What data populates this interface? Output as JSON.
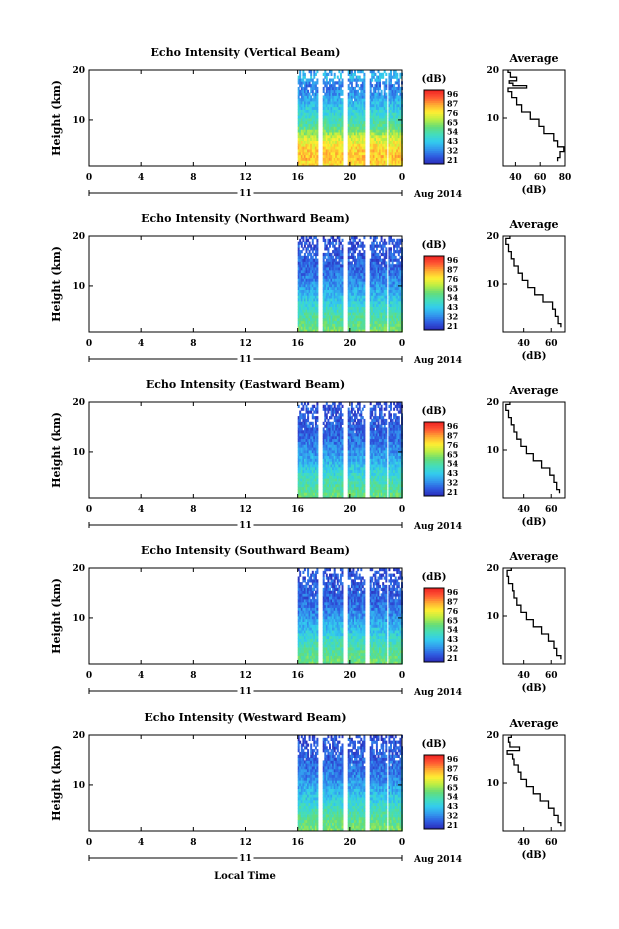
{
  "figure": {
    "xaxis_label": "Local Time",
    "date_label": "Aug 2014",
    "day_label": "11",
    "time_ticks": [
      "0",
      "4",
      "8",
      "12",
      "16",
      "20",
      "0"
    ],
    "height_ticks": [
      "20",
      "10"
    ],
    "ylabel": "Height (km)",
    "colorbar_unit": "(dB)",
    "colorbar_ticks": [
      "96",
      "87",
      "76",
      "65",
      "54",
      "43",
      "32",
      "21"
    ],
    "avg_title": "Average",
    "avg_xlabel": "(dB)",
    "colors": {
      "colorbar": [
        "#2b2bb8",
        "#2e5be0",
        "#3399ee",
        "#33ccee",
        "#44ddbb",
        "#66dd77",
        "#bbee44",
        "#ffee33",
        "#ffaa33",
        "#ff5533",
        "#ee2222"
      ]
    }
  },
  "chart_data": [
    {
      "type": "heatmap",
      "title": "Echo Intensity (Vertical Beam)",
      "x_range_local_time_hours": [
        0,
        24
      ],
      "y_range_km": [
        1.5,
        20
      ],
      "color_range_db": [
        21,
        96
      ],
      "data_time_range_hours": [
        16,
        24
      ],
      "data_gaps_hours": [
        [
          17.6,
          17.9
        ],
        [
          19.5,
          19.8
        ],
        [
          21.2,
          21.5
        ],
        [
          22.8,
          23.0
        ]
      ],
      "intensity_profile": {
        "height_km": [
          1.5,
          3,
          5,
          7,
          9,
          11,
          13,
          15,
          17,
          19,
          20
        ],
        "db": [
          74,
          78,
          76,
          68,
          56,
          49,
          43,
          37,
          32,
          42,
          35
        ]
      },
      "average_profile": {
        "xticks": [
          "40",
          "60",
          "80"
        ],
        "xlim": [
          30,
          80
        ],
        "ylim": [
          0,
          20
        ],
        "height_km": [
          1.0,
          2.5,
          3.5,
          4.5,
          6.0,
          7.5,
          9.0,
          10.5,
          12.0,
          13.5,
          15.0,
          16.0,
          16.5,
          17.0,
          17.5,
          18.0,
          19.0,
          20.0
        ],
        "db": [
          74,
          76,
          79,
          74,
          71,
          63,
          59,
          52,
          45,
          41,
          37,
          34,
          49,
          38,
          35,
          41,
          36,
          34
        ]
      }
    },
    {
      "type": "heatmap",
      "title": "Echo Intensity (Northward Beam)",
      "x_range_local_time_hours": [
        0,
        24
      ],
      "y_range_km": [
        1.5,
        20
      ],
      "color_range_db": [
        21,
        96
      ],
      "data_time_range_hours": [
        16,
        24
      ],
      "data_gaps_hours": [
        [
          17.6,
          17.9
        ],
        [
          19.5,
          19.8
        ],
        [
          21.2,
          21.5
        ],
        [
          22.8,
          23.0
        ]
      ],
      "intensity_profile": {
        "height_km": [
          1.5,
          3,
          5,
          7,
          9,
          11,
          13,
          15,
          17,
          19,
          20
        ],
        "db": [
          60,
          56,
          52,
          46,
          40,
          35,
          31,
          29,
          28,
          27,
          26
        ]
      },
      "average_profile": {
        "xticks": [
          "40",
          "60"
        ],
        "xlim": [
          25,
          70
        ],
        "ylim": [
          0,
          20
        ],
        "height_km": [
          1.0,
          2.5,
          4.0,
          5.5,
          7.0,
          8.5,
          10.0,
          11.5,
          13.0,
          14.5,
          16.0,
          17.5,
          19.0,
          20.0
        ],
        "db": [
          67,
          65,
          63,
          61,
          54,
          48,
          43,
          39,
          36,
          33,
          31,
          29,
          27,
          30
        ]
      }
    },
    {
      "type": "heatmap",
      "title": "Echo Intensity (Eastward Beam)",
      "x_range_local_time_hours": [
        0,
        24
      ],
      "y_range_km": [
        1.5,
        20
      ],
      "color_range_db": [
        21,
        96
      ],
      "data_time_range_hours": [
        16,
        24
      ],
      "data_gaps_hours": [
        [
          17.6,
          17.9
        ],
        [
          19.5,
          19.8
        ],
        [
          21.2,
          21.5
        ],
        [
          22.8,
          23.0
        ]
      ],
      "intensity_profile": {
        "height_km": [
          1.5,
          3,
          5,
          7,
          9,
          11,
          13,
          15,
          17,
          19,
          20
        ],
        "db": [
          58,
          55,
          51,
          45,
          39,
          34,
          31,
          29,
          28,
          27,
          26
        ]
      },
      "average_profile": {
        "xticks": [
          "40",
          "60"
        ],
        "xlim": [
          25,
          70
        ],
        "ylim": [
          0,
          20
        ],
        "height_km": [
          1.0,
          2.5,
          4.0,
          5.5,
          7.0,
          8.5,
          10.0,
          11.5,
          13.0,
          14.5,
          16.0,
          17.5,
          19.0,
          20.0
        ],
        "db": [
          66,
          64,
          62,
          59,
          53,
          47,
          42,
          38,
          35,
          33,
          31,
          29,
          27,
          30
        ]
      }
    },
    {
      "type": "heatmap",
      "title": "Echo Intensity (Southward Beam)",
      "x_range_local_time_hours": [
        0,
        24
      ],
      "y_range_km": [
        1.5,
        20
      ],
      "color_range_db": [
        21,
        96
      ],
      "data_time_range_hours": [
        16,
        24
      ],
      "data_gaps_hours": [
        [
          17.6,
          17.9
        ],
        [
          19.5,
          19.8
        ],
        [
          21.2,
          21.5
        ],
        [
          22.8,
          23.0
        ]
      ],
      "intensity_profile": {
        "height_km": [
          1.5,
          3,
          5,
          7,
          9,
          11,
          13,
          15,
          17,
          19,
          20
        ],
        "db": [
          59,
          56,
          52,
          46,
          40,
          35,
          31,
          29,
          28,
          27,
          26
        ]
      },
      "average_profile": {
        "xticks": [
          "40",
          "60"
        ],
        "xlim": [
          25,
          70
        ],
        "ylim": [
          0,
          20
        ],
        "height_km": [
          1.0,
          2.5,
          4.0,
          5.5,
          7.0,
          8.5,
          10.0,
          11.5,
          13.0,
          14.5,
          16.0,
          17.5,
          19.0,
          20.0
        ],
        "db": [
          67,
          64,
          62,
          58,
          53,
          47,
          42,
          38,
          35,
          33,
          32,
          29,
          28,
          31
        ]
      }
    },
    {
      "type": "heatmap",
      "title": "Echo Intensity (Westward Beam)",
      "x_range_local_time_hours": [
        0,
        24
      ],
      "y_range_km": [
        1.5,
        20
      ],
      "color_range_db": [
        21,
        96
      ],
      "data_time_range_hours": [
        16,
        24
      ],
      "data_gaps_hours": [
        [
          17.6,
          17.9
        ],
        [
          19.5,
          19.8
        ],
        [
          21.2,
          21.5
        ],
        [
          22.8,
          23.0
        ]
      ],
      "intensity_profile": {
        "height_km": [
          1.5,
          3,
          5,
          7,
          9,
          11,
          13,
          15,
          17,
          19,
          20
        ],
        "db": [
          61,
          57,
          53,
          47,
          41,
          36,
          32,
          30,
          28,
          27,
          26
        ]
      },
      "average_profile": {
        "xticks": [
          "40",
          "60"
        ],
        "xlim": [
          25,
          70
        ],
        "ylim": [
          0,
          20
        ],
        "height_km": [
          1.0,
          2.5,
          4.0,
          5.5,
          7.0,
          8.5,
          10.0,
          11.5,
          13.0,
          14.5,
          15.5,
          16.5,
          17.0,
          18.0,
          19.0,
          20.0
        ],
        "db": [
          67,
          65,
          62,
          58,
          52,
          47,
          42,
          38,
          36,
          33,
          32,
          28,
          37,
          30,
          29,
          31
        ]
      }
    }
  ]
}
